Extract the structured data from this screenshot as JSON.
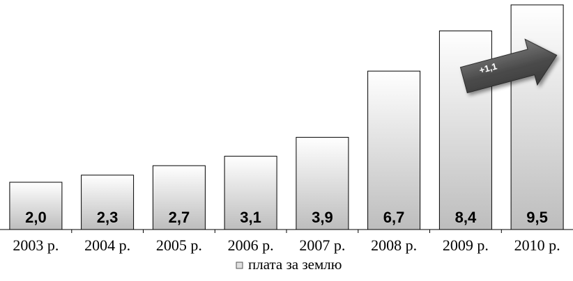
{
  "chart_data": {
    "type": "bar",
    "categories": [
      "2003 р.",
      "2004 р.",
      "2005 р.",
      "2006 р.",
      "2007 р.",
      "2008 р.",
      "2009 р.",
      "2010 р."
    ],
    "series": [
      {
        "name": "плата за землю",
        "values": [
          2.0,
          2.3,
          2.7,
          3.1,
          3.9,
          6.7,
          8.4,
          9.5
        ],
        "labels": [
          "2,0",
          "2,3",
          "2,7",
          "3,1",
          "3,9",
          "6,7",
          "8,4",
          "9,5"
        ]
      }
    ],
    "ylim": [
      0,
      9.5
    ],
    "grid": false,
    "legend_position": "bottom",
    "annotation": "+1,1"
  },
  "colors": {
    "bar_top": "#ffffff",
    "bar_bottom": "#bdbdbd",
    "bar_stroke": "#000000",
    "arrow_fill": "#4a4a4a",
    "legend_swatch": "#e0e0e0"
  }
}
